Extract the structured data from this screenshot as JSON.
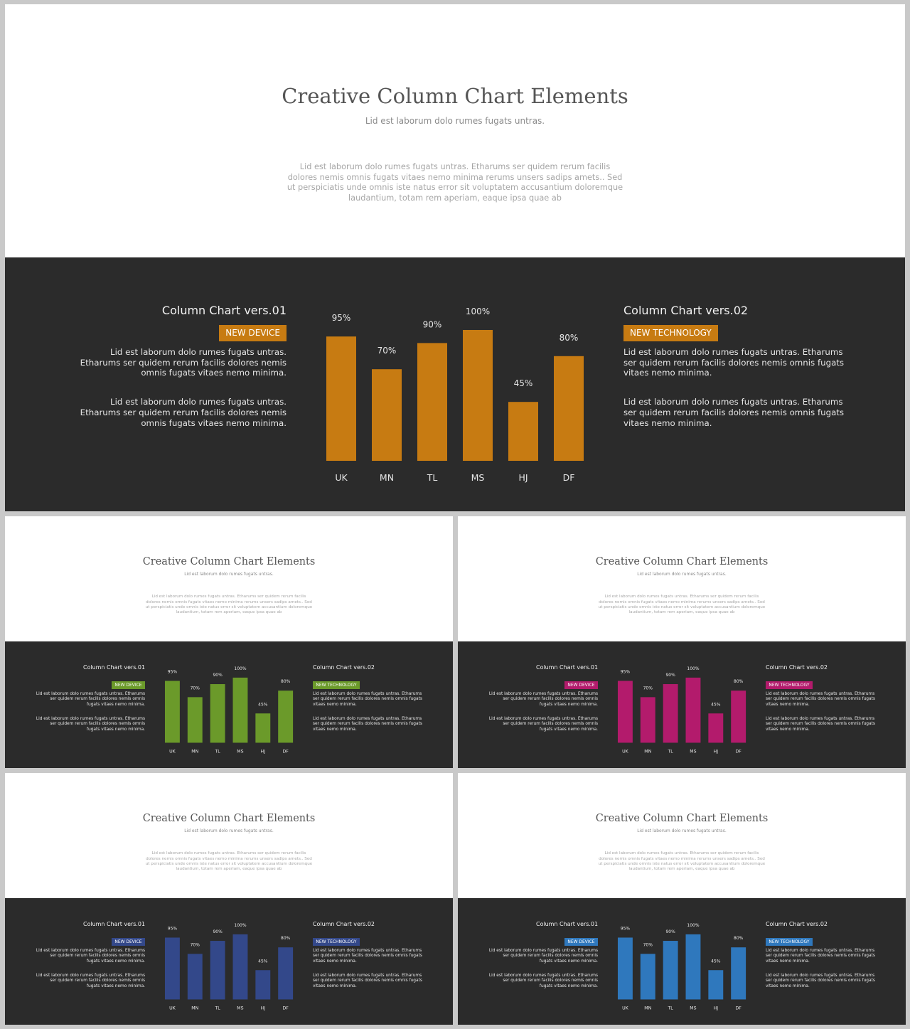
{
  "slides": [
    {
      "title": "Creative Column Chart Elements",
      "subtitle": "Lid est laborum dolo rumes fugats untras.",
      "description": "Lid est laborum dolo rumes fugats untras. Etharums ser quidem rerum facilis dolores nemis omnis fugats vitaes nemo minima rerums unsers sadips amets.. Sed ut perspiciatis unde omnis iste natus error sit voluptatem accusantium doloremque laudantium, totam rem aperiam, eaque ipsa quae ab",
      "accent_color": "#c77b12",
      "left_panel": {
        "heading": "Column  Chart vers.01",
        "badge": "NEW DEVICE",
        "paragraphs": [
          "Lid est laborum dolo rumes fugats untras. Etharums ser quidem rerum facilis dolores nemis omnis fugats vitaes nemo minima.",
          "Lid est laborum dolo rumes fugats untras. Etharums ser quidem rerum facilis dolores nemis omnis fugats vitaes nemo minima."
        ]
      },
      "right_panel": {
        "heading": "Column  Chart vers.02",
        "badge": "NEW TECHNOLOGY",
        "paragraphs": [
          "Lid est laborum dolo rumes fugats untras. Etharums ser quidem rerum facilis dolores nemis omnis fugats vitaes nemo minima.",
          "Lid est laborum dolo rumes fugats untras. Etharums ser quidem rerum facilis dolores nemis omnis fugats vitaes nemo minima."
        ]
      }
    },
    {
      "title": "Creative Column Chart Elements",
      "subtitle": "Lid est laborum dolo rumes fugats untras.",
      "description": "Lid est laborum dolo rumes fugats untras. Etharums ser quidem rerum facilis dolores nemis omnis fugats vitaes nemo minima rerums unsers sadips amets.. Sed ut perspiciatis unde omnis iste natus error sit voluptatem accusantium doloremque laudantium, totam rem aperiam, eaque ipsa quae ab",
      "accent_color": "#6b9a2a",
      "left_panel": {
        "heading": "Column  Chart vers.01",
        "badge": "NEW DEVICE",
        "paragraphs": [
          "Lid est laborum dolo rumes fugats untras. Etharums ser quidem rerum facilis dolores nemis omnis fugats vitaes nemo minima.",
          "Lid est laborum dolo rumes fugats untras. Etharums ser quidem rerum facilis dolores nemis omnis fugats vitaes nemo minima."
        ]
      },
      "right_panel": {
        "heading": "Column  Chart vers.02",
        "badge": "NEW TECHNOLOGY",
        "paragraphs": [
          "Lid est laborum dolo rumes fugats untras. Etharums ser quidem rerum facilis dolores nemis omnis fugats vitaes nemo minima.",
          "Lid est laborum dolo rumes fugats untras. Etharums ser quidem rerum facilis dolores nemis omnis fugats vitaes nemo minima."
        ]
      }
    },
    {
      "title": "Creative Column Chart Elements",
      "subtitle": "Lid est laborum dolo rumes fugats untras.",
      "description": "Lid est laborum dolo rumes fugats untras. Etharums ser quidem rerum facilis dolores nemis omnis fugats vitaes nemo minima rerums unsers sadips amets.. Sed ut perspiciatis unde omnis iste natus error sit voluptatem accusantium doloremque laudantium, totam rem aperiam, eaque ipsa quae ab",
      "accent_color": "#b31b6c",
      "left_panel": {
        "heading": "Column  Chart vers.01",
        "badge": "NEW DEVICE",
        "paragraphs": [
          "Lid est laborum dolo rumes fugats untras. Etharums ser quidem rerum facilis dolores nemis omnis fugats vitaes nemo minima.",
          "Lid est laborum dolo rumes fugats untras. Etharums ser quidem rerum facilis dolores nemis omnis fugats vitaes nemo minima."
        ]
      },
      "right_panel": {
        "heading": "Column  Chart vers.02",
        "badge": "NEW TECHNOLOGY",
        "paragraphs": [
          "Lid est laborum dolo rumes fugats untras. Etharums ser quidem rerum facilis dolores nemis omnis fugats vitaes nemo minima.",
          "Lid est laborum dolo rumes fugats untras. Etharums ser quidem rerum facilis dolores nemis omnis fugats vitaes nemo minima."
        ]
      }
    },
    {
      "title": "Creative Column Chart Elements",
      "subtitle": "Lid est laborum dolo rumes fugats untras.",
      "description": "Lid est laborum dolo rumes fugats untras. Etharums ser quidem rerum facilis dolores nemis omnis fugats vitaes nemo minima rerums unsers sadips amets.. Sed ut perspiciatis unde omnis iste natus error sit voluptatem accusantium doloremque laudantium, totam rem aperiam, eaque ipsa quae ab",
      "accent_color": "#33488a",
      "left_panel": {
        "heading": "Column  Chart vers.01",
        "badge": "NEW DEVICE",
        "paragraphs": [
          "Lid est laborum dolo rumes fugats untras. Etharums ser quidem rerum facilis dolores nemis omnis fugats vitaes nemo minima.",
          "Lid est laborum dolo rumes fugats untras. Etharums ser quidem rerum facilis dolores nemis omnis fugats vitaes nemo minima."
        ]
      },
      "right_panel": {
        "heading": "Column  Chart vers.02",
        "badge": "NEW TECHNOLOGY",
        "paragraphs": [
          "Lid est laborum dolo rumes fugats untras. Etharums ser quidem rerum facilis dolores nemis omnis fugats vitaes nemo minima.",
          "Lid est laborum dolo rumes fugats untras. Etharums ser quidem rerum facilis dolores nemis omnis fugats vitaes nemo minima."
        ]
      }
    },
    {
      "title": "Creative Column Chart Elements",
      "subtitle": "Lid est laborum dolo rumes fugats untras.",
      "description": "Lid est laborum dolo rumes fugats untras. Etharums ser quidem rerum facilis dolores nemis omnis fugats vitaes nemo minima rerums unsers sadips amets.. Sed ut perspiciatis unde omnis iste natus error sit voluptatem accusantium doloremque laudantium, totam rem aperiam, eaque ipsa quae ab",
      "accent_color": "#2f78bd",
      "left_panel": {
        "heading": "Column  Chart vers.01",
        "badge": "NEW DEVICE",
        "paragraphs": [
          "Lid est laborum dolo rumes fugats untras. Etharums ser quidem rerum facilis dolores nemis omnis fugats vitaes nemo minima.",
          "Lid est laborum dolo rumes fugats untras. Etharums ser quidem rerum facilis dolores nemis omnis fugats vitaes nemo minima."
        ]
      },
      "right_panel": {
        "heading": "Column  Chart vers.02",
        "badge": "NEW TECHNOLOGY",
        "paragraphs": [
          "Lid est laborum dolo rumes fugats untras. Etharums ser quidem rerum facilis dolores nemis omnis fugats vitaes nemo minima.",
          "Lid est laborum dolo rumes fugats untras. Etharums ser quidem rerum facilis dolores nemis omnis fugats vitaes nemo minima."
        ]
      }
    }
  ],
  "chart_data": [
    {
      "type": "bar",
      "categories": [
        "UK",
        "MN",
        "TL",
        "MS",
        "HJ",
        "DF"
      ],
      "values": [
        95,
        70,
        90,
        100,
        45,
        80
      ],
      "data_labels": [
        "95%",
        "70%",
        "90%",
        "100%",
        "45%",
        "80%"
      ],
      "ylim": [
        0,
        100
      ],
      "grid": false,
      "color": "#c77b12"
    },
    {
      "type": "bar",
      "categories": [
        "UK",
        "MN",
        "TL",
        "MS",
        "HJ",
        "DF"
      ],
      "values": [
        95,
        70,
        90,
        100,
        45,
        80
      ],
      "data_labels": [
        "95%",
        "70%",
        "90%",
        "100%",
        "45%",
        "80%"
      ],
      "ylim": [
        0,
        100
      ],
      "grid": false,
      "color": "#6b9a2a"
    },
    {
      "type": "bar",
      "categories": [
        "UK",
        "MN",
        "TL",
        "MS",
        "HJ",
        "DF"
      ],
      "values": [
        95,
        70,
        90,
        100,
        45,
        80
      ],
      "data_labels": [
        "95%",
        "70%",
        "90%",
        "100%",
        "45%",
        "80%"
      ],
      "ylim": [
        0,
        100
      ],
      "grid": false,
      "color": "#b31b6c"
    },
    {
      "type": "bar",
      "categories": [
        "UK",
        "MN",
        "TL",
        "MS",
        "HJ",
        "DF"
      ],
      "values": [
        95,
        70,
        90,
        100,
        45,
        80
      ],
      "data_labels": [
        "95%",
        "70%",
        "90%",
        "100%",
        "45%",
        "80%"
      ],
      "ylim": [
        0,
        100
      ],
      "grid": false,
      "color": "#33488a"
    },
    {
      "type": "bar",
      "categories": [
        "UK",
        "MN",
        "TL",
        "MS",
        "HJ",
        "DF"
      ],
      "values": [
        95,
        70,
        90,
        100,
        45,
        80
      ],
      "data_labels": [
        "95%",
        "70%",
        "90%",
        "100%",
        "45%",
        "80%"
      ],
      "ylim": [
        0,
        100
      ],
      "grid": false,
      "color": "#2f78bd"
    }
  ]
}
